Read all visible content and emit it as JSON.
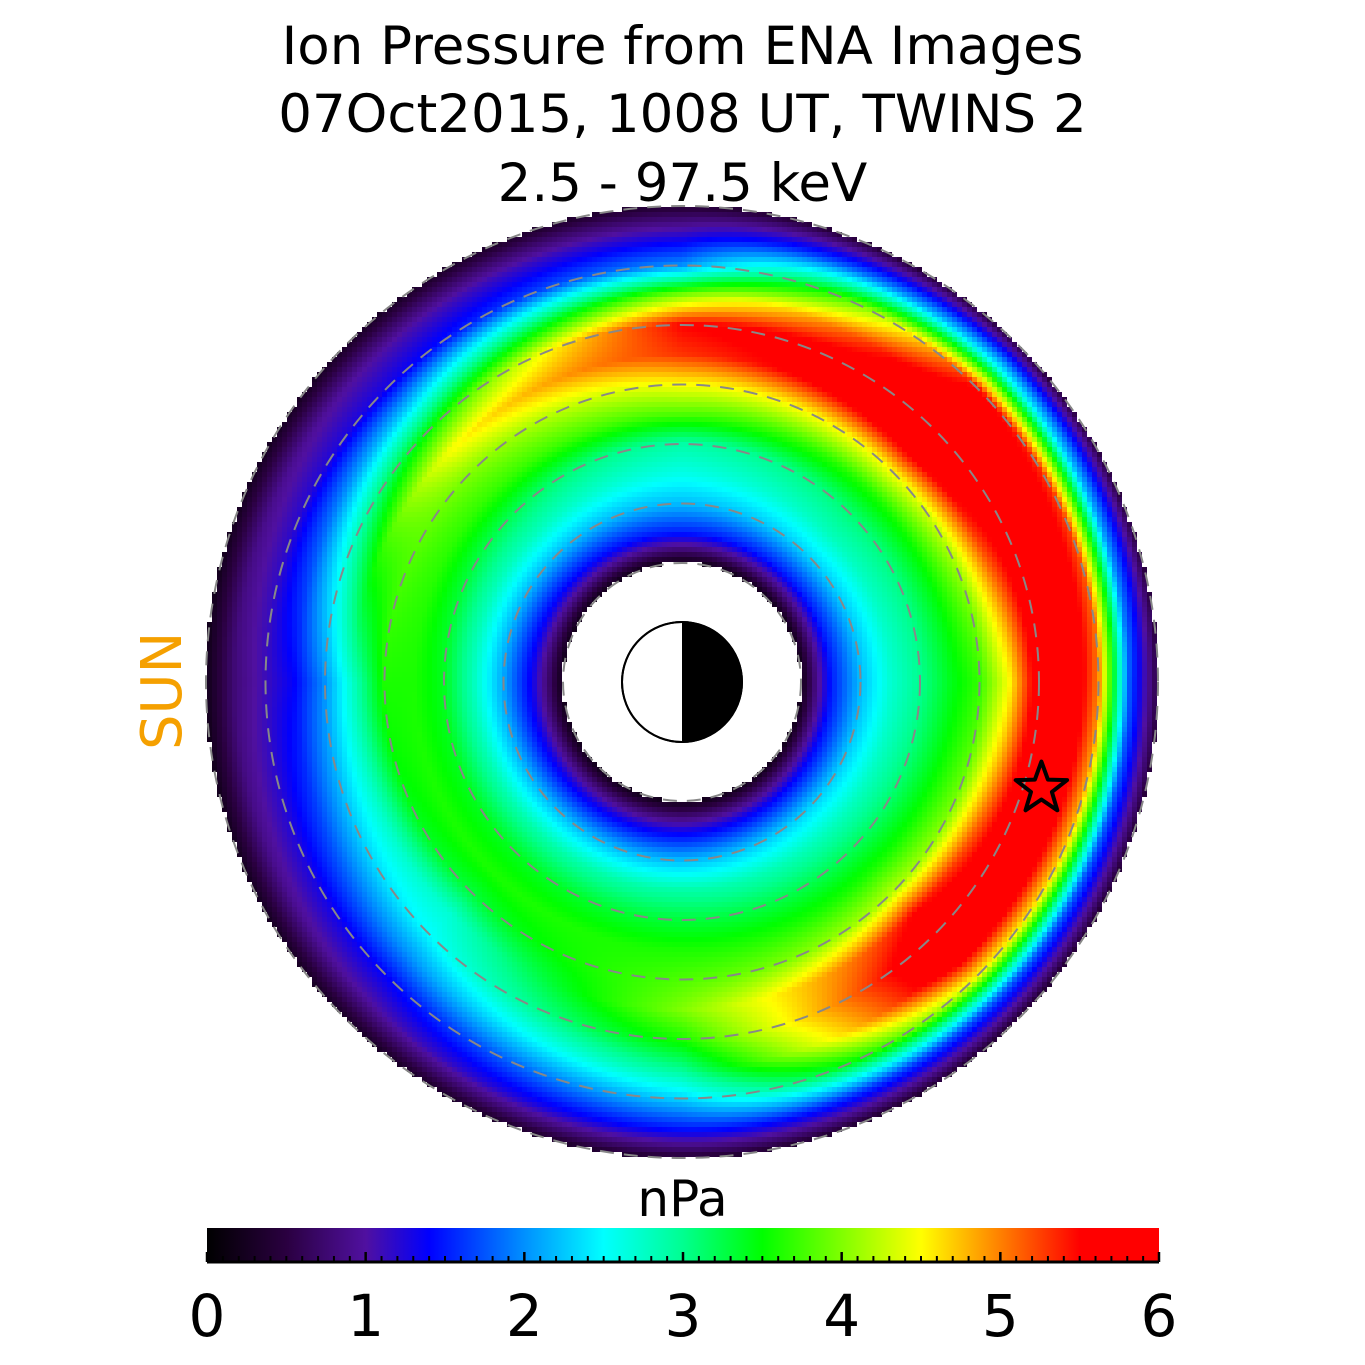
{
  "title_lines": [
    "Ion Pressure from  ENA Images",
    "07Oct2015, 1008 UT,  TWINS 2",
    "2.5 - 97.5 keV"
  ],
  "sun_label": "SUN",
  "colors": {
    "sun_label": "#f5a000",
    "grid_circles": "#888888",
    "star_outline": "#000000"
  },
  "chart_data": {
    "type": "heatmap",
    "projection": "polar equatorial view, Sun to the left",
    "radii_RE": [
      2,
      2.5,
      3,
      3.5,
      4,
      4.5,
      5,
      5.5,
      6,
      6.5,
      7,
      7.5,
      8
    ],
    "mlt": [
      0,
      3,
      6,
      9,
      12,
      15,
      18,
      21
    ],
    "values_nPa": [
      [
        0.2,
        1.5,
        2.2,
        2.7,
        3.0,
        3.4,
        3.7,
        4.5,
        5.8,
        6.0,
        5.0,
        1.8,
        0.5
      ],
      [
        0.2,
        1.5,
        2.3,
        2.8,
        3.1,
        3.6,
        4.5,
        5.8,
        6.0,
        6.0,
        5.5,
        2.5,
        0.5
      ],
      [
        0.2,
        1.5,
        2.2,
        2.6,
        2.9,
        3.8,
        4.5,
        5.3,
        5.5,
        4.0,
        2.0,
        1.2,
        0.4
      ],
      [
        0.2,
        1.4,
        2.2,
        2.8,
        3.2,
        3.7,
        4.0,
        4.5,
        3.5,
        2.3,
        1.3,
        1.0,
        0.3
      ],
      [
        0.2,
        1.3,
        2.1,
        2.8,
        3.4,
        3.6,
        3.6,
        2.8,
        2.0,
        1.4,
        1.1,
        0.8,
        0.2
      ],
      [
        0.2,
        1.3,
        2.2,
        2.9,
        3.4,
        3.6,
        3.3,
        2.7,
        2.5,
        2.0,
        1.4,
        1.0,
        0.3
      ],
      [
        0.2,
        1.3,
        2.2,
        2.9,
        3.3,
        3.6,
        3.8,
        4.0,
        3.6,
        3.0,
        2.3,
        1.5,
        0.4
      ],
      [
        0.2,
        1.4,
        2.3,
        2.8,
        3.2,
        3.6,
        4.2,
        5.5,
        6.0,
        6.0,
        4.5,
        1.8,
        0.4
      ]
    ],
    "grid_circles_RE": [
      2,
      3,
      4,
      5,
      6,
      7,
      8
    ],
    "satellite_marker": {
      "symbol": "star",
      "radius_RE": 6.3,
      "mlt": 22.9
    },
    "colorbar": {
      "label": "nPa",
      "range": [
        0,
        6
      ],
      "tick_labels": [
        "0",
        "1",
        "2",
        "3",
        "4",
        "5",
        "6"
      ],
      "minor_step": 0.1,
      "colorscale": [
        [
          0,
          "#000000"
        ],
        [
          0.5,
          "#2a0040"
        ],
        [
          1,
          "#5010a0"
        ],
        [
          1.4,
          "#0000ff"
        ],
        [
          2,
          "#0090ff"
        ],
        [
          2.5,
          "#00ffff"
        ],
        [
          3,
          "#00ff90"
        ],
        [
          3.5,
          "#00ff00"
        ],
        [
          4,
          "#80ff00"
        ],
        [
          4.5,
          "#ffff00"
        ],
        [
          5,
          "#ff8000"
        ],
        [
          5.5,
          "#ff0000"
        ],
        [
          6,
          "#ff0000"
        ]
      ]
    }
  }
}
